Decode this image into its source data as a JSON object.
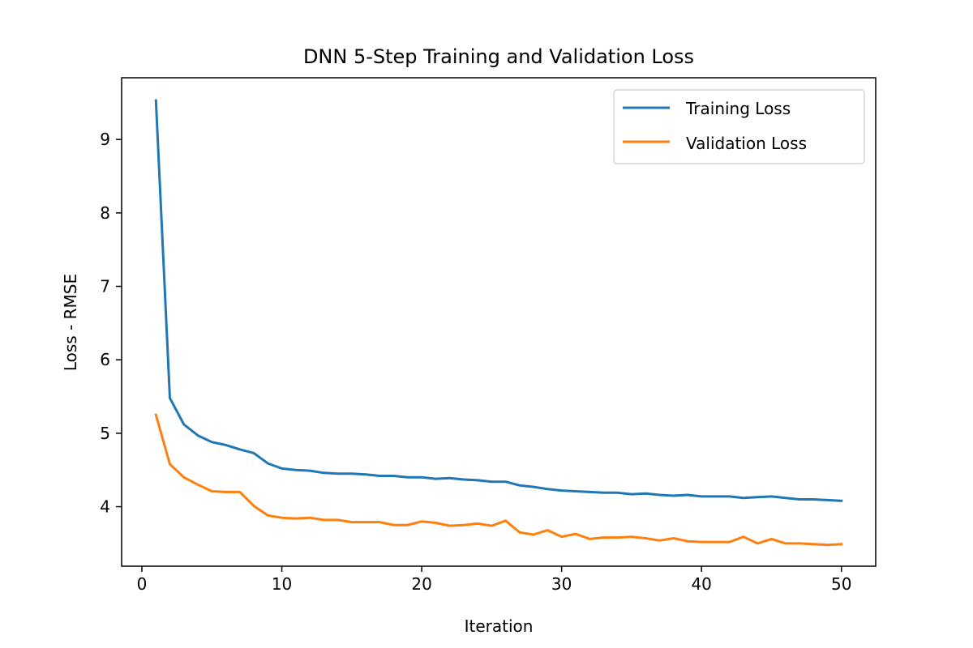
{
  "chart_data": {
    "type": "line",
    "title": "DNN 5-Step Training and Validation Loss",
    "xlabel": "Iteration",
    "ylabel": "Loss - RMSE",
    "xlim": [
      -1.45,
      52.45
    ],
    "ylim": [
      3.19,
      9.84
    ],
    "xticks": [
      0,
      10,
      20,
      30,
      40,
      50
    ],
    "yticks": [
      4,
      5,
      6,
      7,
      8,
      9
    ],
    "grid": false,
    "legend_position": "top-right",
    "x": [
      1,
      2,
      3,
      4,
      5,
      6,
      7,
      8,
      9,
      10,
      11,
      12,
      13,
      14,
      15,
      16,
      17,
      18,
      19,
      20,
      21,
      22,
      23,
      24,
      25,
      26,
      27,
      28,
      29,
      30,
      31,
      32,
      33,
      34,
      35,
      36,
      37,
      38,
      39,
      40,
      41,
      42,
      43,
      44,
      45,
      46,
      47,
      48,
      49,
      50
    ],
    "series": [
      {
        "name": "Training Loss",
        "color": "#1f77b4",
        "values": [
          9.53,
          5.48,
          5.12,
          4.97,
          4.88,
          4.84,
          4.78,
          4.73,
          4.59,
          4.52,
          4.5,
          4.49,
          4.46,
          4.45,
          4.45,
          4.44,
          4.42,
          4.42,
          4.4,
          4.4,
          4.38,
          4.39,
          4.37,
          4.36,
          4.34,
          4.34,
          4.29,
          4.27,
          4.24,
          4.22,
          4.21,
          4.2,
          4.19,
          4.19,
          4.17,
          4.18,
          4.16,
          4.15,
          4.16,
          4.14,
          4.14,
          4.14,
          4.12,
          4.13,
          4.14,
          4.12,
          4.1,
          4.1,
          4.09,
          4.08
        ]
      },
      {
        "name": "Validation Loss",
        "color": "#ff7f0e",
        "values": [
          5.25,
          4.58,
          4.4,
          4.3,
          4.21,
          4.2,
          4.2,
          4.01,
          3.88,
          3.85,
          3.84,
          3.85,
          3.82,
          3.82,
          3.79,
          3.79,
          3.79,
          3.75,
          3.75,
          3.8,
          3.78,
          3.74,
          3.75,
          3.77,
          3.74,
          3.81,
          3.65,
          3.62,
          3.68,
          3.59,
          3.63,
          3.56,
          3.58,
          3.58,
          3.59,
          3.57,
          3.54,
          3.57,
          3.53,
          3.52,
          3.52,
          3.52,
          3.59,
          3.5,
          3.56,
          3.5,
          3.5,
          3.49,
          3.48,
          3.49
        ]
      }
    ]
  }
}
